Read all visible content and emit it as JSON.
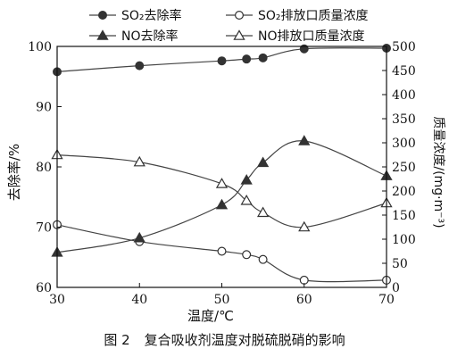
{
  "chart_data": {
    "type": "line",
    "caption_number": "图 2",
    "caption_text": "复合吸收剂温度对脱硫脱硝的影响",
    "xlabel": "温度/℃",
    "ylabel_left": "去除率/%",
    "ylabel_right": "质量浓度/(mg·m⁻³)",
    "xlim": [
      30,
      70
    ],
    "xticks": [
      30,
      40,
      50,
      60,
      70
    ],
    "ylim_left": [
      60,
      100
    ],
    "yticks_left": [
      60,
      70,
      80,
      90,
      100
    ],
    "ylim_right": [
      0,
      500
    ],
    "yticks_right": [
      0,
      50,
      100,
      150,
      200,
      250,
      300,
      350,
      400,
      450,
      500
    ],
    "grid": false,
    "legend_position": "top",
    "series": [
      {
        "name": "SO₂去除率",
        "axis": "left",
        "marker": "filled-circle",
        "x": [
          30,
          40,
          50,
          53,
          55,
          60,
          70
        ],
        "y": [
          95.8,
          96.8,
          97.6,
          97.9,
          98.1,
          99.6,
          99.7
        ]
      },
      {
        "name": "SO₂排放口质量浓度",
        "axis": "right",
        "marker": "open-circle",
        "x": [
          30,
          40,
          50,
          53,
          55,
          60,
          70
        ],
        "y": [
          130,
          95,
          75,
          68,
          58,
          15,
          15
        ]
      },
      {
        "name": "NO去除率",
        "axis": "left",
        "marker": "filled-triangle",
        "x": [
          30,
          40,
          50,
          53,
          55,
          60,
          70
        ],
        "y": [
          65.8,
          68.2,
          73.7,
          77.8,
          80.7,
          84.3,
          78.5
        ]
      },
      {
        "name": "NO排放口质量浓度",
        "axis": "right",
        "marker": "open-triangle",
        "x": [
          30,
          40,
          50,
          53,
          55,
          60,
          70
        ],
        "y": [
          275,
          260,
          215,
          180,
          155,
          125,
          175
        ]
      }
    ]
  }
}
